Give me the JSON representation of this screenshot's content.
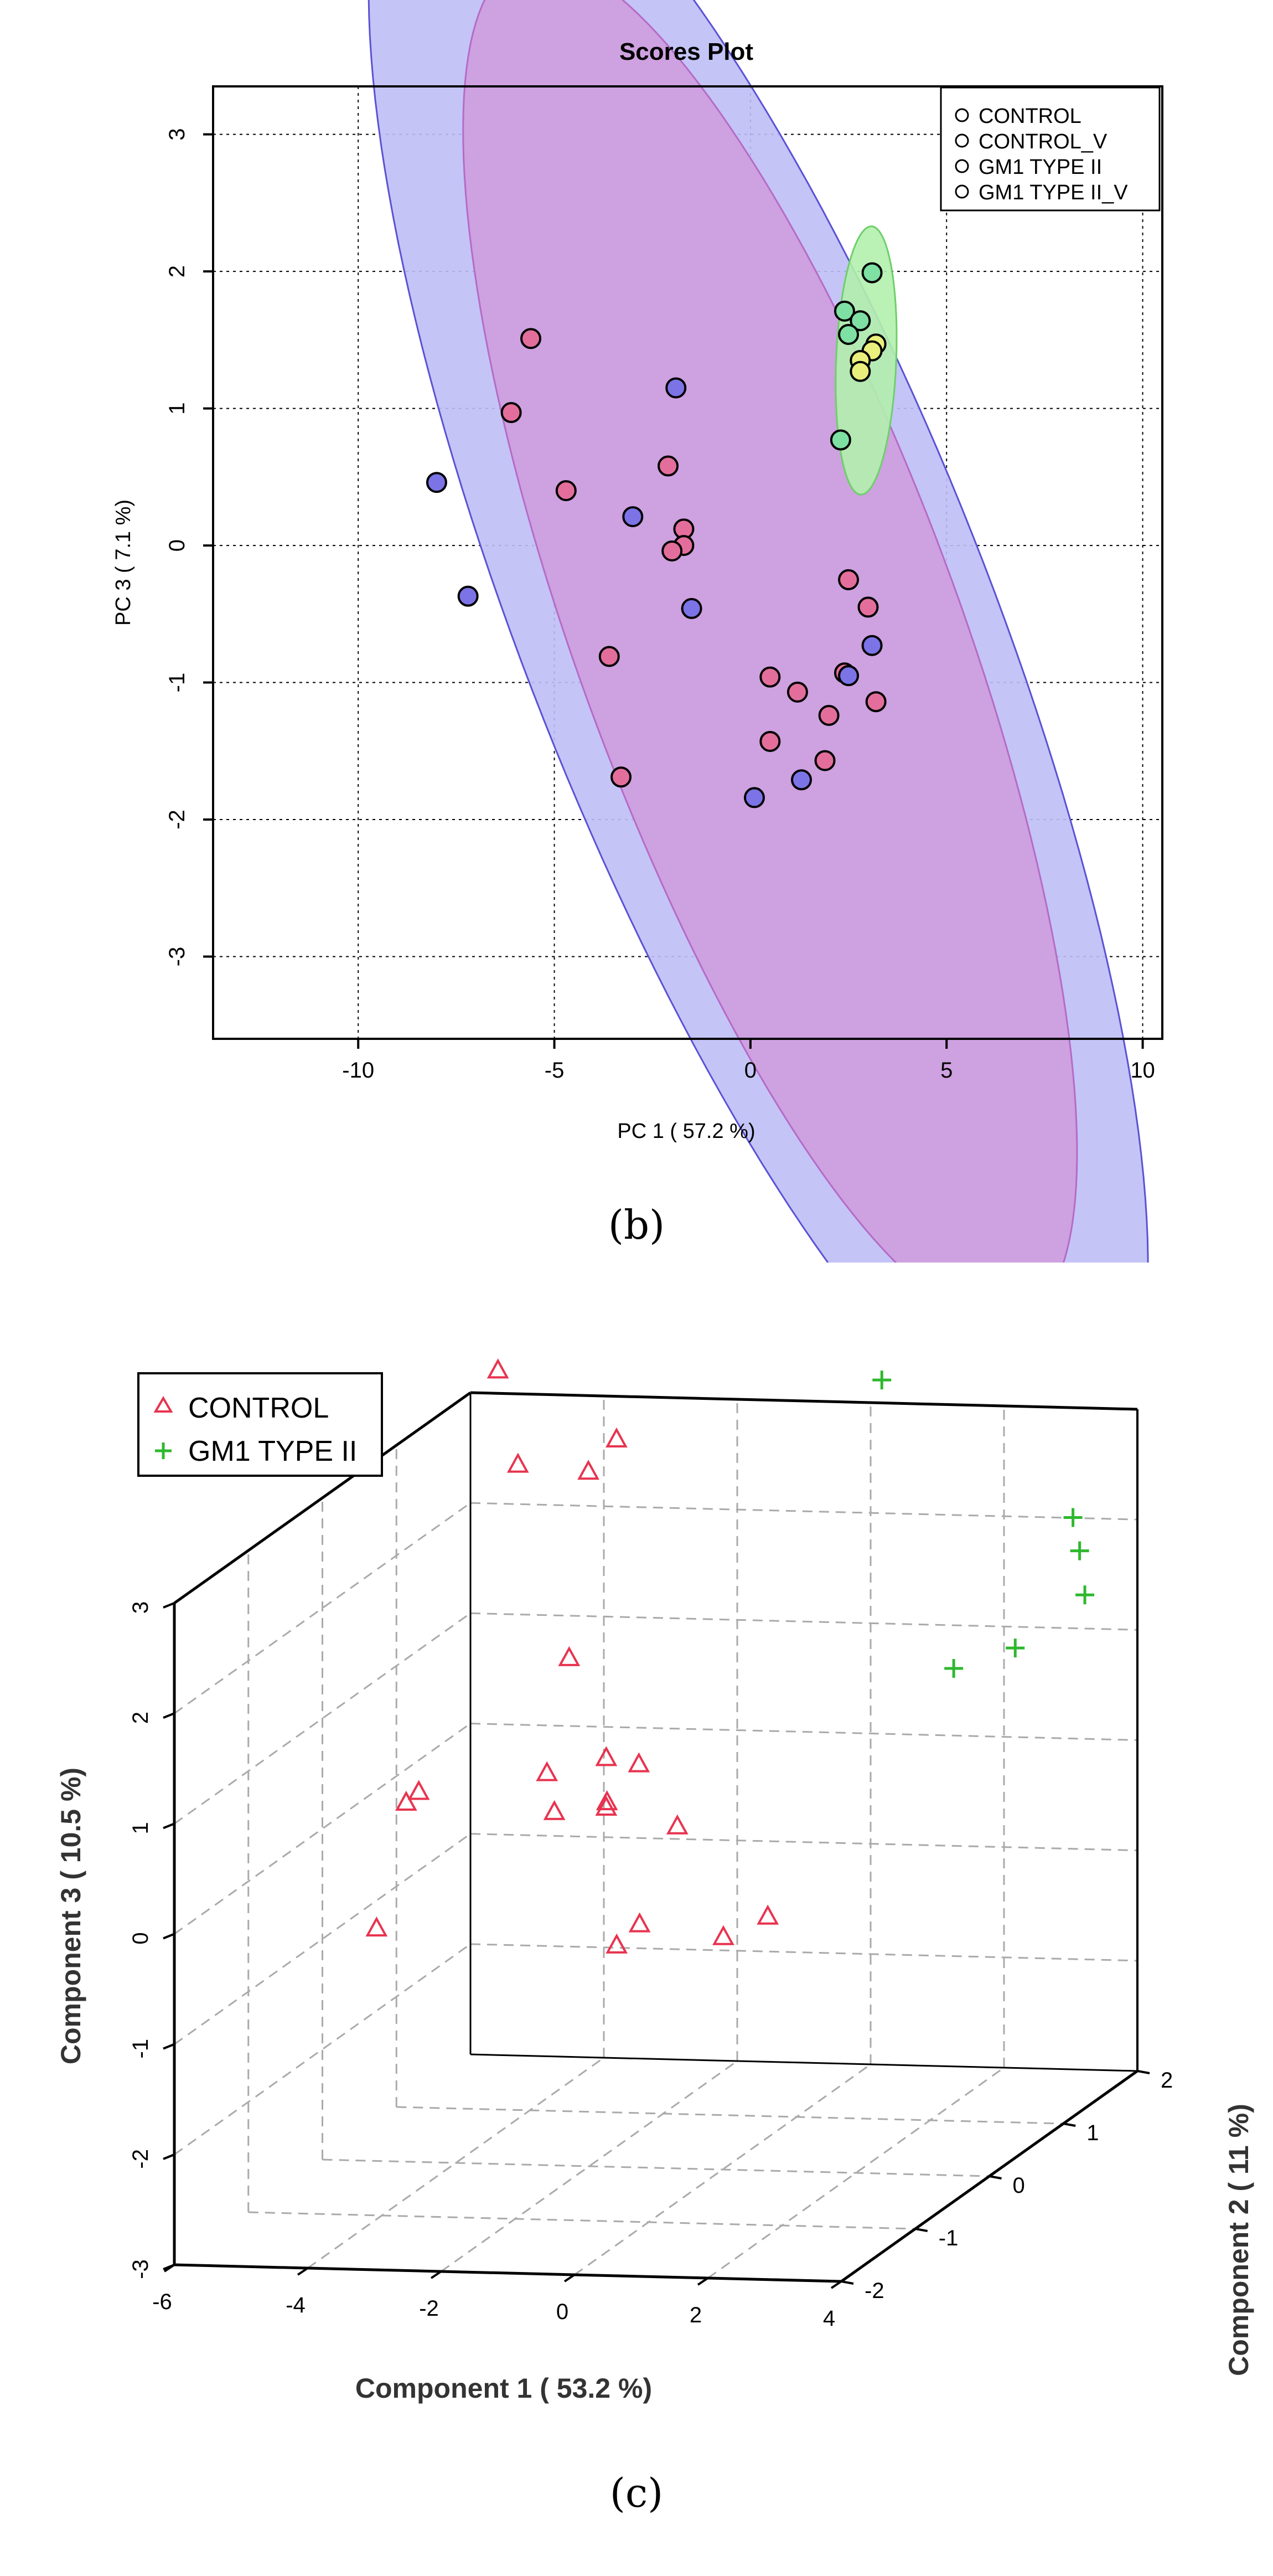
{
  "captions": {
    "b": "(b)",
    "c": "(c)"
  },
  "chart_data": [
    {
      "type": "scatter",
      "title": "Scores Plot",
      "xlabel": "PC 1 ( 57.2 %)",
      "ylabel": "PC 3 ( 7.1 %)",
      "xlim": [
        -13.7,
        10.5
      ],
      "ylim": [
        -3.6,
        3.35
      ],
      "x_ticks": [
        -10,
        -5,
        0,
        5,
        10
      ],
      "y_ticks": [
        -3,
        -2,
        -1,
        0,
        1,
        2,
        3
      ],
      "x_tick_labels": [
        "-10",
        "-5",
        "0",
        "5",
        "10"
      ],
      "y_tick_labels": [
        "-3",
        "-2",
        "-1",
        "0",
        "1",
        "2",
        "3"
      ],
      "grid": true,
      "legend_position": "top-right",
      "legend": [
        "CONTROL",
        "CONTROL_V",
        "GM1 TYPE II",
        "GM1 TYPE II_V"
      ],
      "colors": {
        "CONTROL": "#e36e9c",
        "CONTROL_V": "#7b73e6",
        "GM1 TYPE II": "#7ee0a2",
        "GM1 TYPE II_V": "#e9ef7c",
        "ellipse_control_v": "#bebef6",
        "ellipse_control": "#cf9ddd",
        "ellipse_gm1": "#b3efad"
      },
      "ellipses": [
        {
          "group": "CONTROL_V",
          "cx": 0.2,
          "cy": -0.6,
          "a": 11.1,
          "b": 3.46,
          "angle_deg": -28.0
        },
        {
          "group": "CONTROL",
          "cx": 0.5,
          "cy": -0.7,
          "a": 8.8,
          "b": 2.93,
          "angle_deg": -29.0
        },
        {
          "group": "GM1 TYPE II",
          "cx": 2.95,
          "cy": 1.35,
          "a": 1.0,
          "b": 0.75,
          "angle_deg": 72.0
        }
      ],
      "series": [
        {
          "name": "CONTROL",
          "points": [
            [
              -5.6,
              1.51
            ],
            [
              -6.1,
              0.97
            ],
            [
              -4.7,
              0.4
            ],
            [
              -2.1,
              0.58
            ],
            [
              -1.7,
              0.12
            ],
            [
              -1.7,
              0.0
            ],
            [
              -2.0,
              -0.04
            ],
            [
              -3.6,
              -0.81
            ],
            [
              -3.3,
              -1.69
            ],
            [
              0.5,
              -0.96
            ],
            [
              0.5,
              -1.43
            ],
            [
              1.2,
              -1.07
            ],
            [
              2.0,
              -1.24
            ],
            [
              1.9,
              -1.57
            ],
            [
              2.5,
              -0.25
            ],
            [
              3.0,
              -0.45
            ],
            [
              3.2,
              -1.14
            ],
            [
              2.4,
              -0.93
            ]
          ]
        },
        {
          "name": "CONTROL_V",
          "points": [
            [
              -8.0,
              0.46
            ],
            [
              -7.2,
              -0.37
            ],
            [
              -1.9,
              1.15
            ],
            [
              -3.0,
              0.21
            ],
            [
              -1.5,
              -0.46
            ],
            [
              0.1,
              -1.84
            ],
            [
              1.3,
              -1.71
            ],
            [
              2.5,
              -0.95
            ],
            [
              3.1,
              -0.73
            ]
          ]
        },
        {
          "name": "GM1 TYPE II",
          "points": [
            [
              3.1,
              1.99
            ],
            [
              2.4,
              1.71
            ],
            [
              2.8,
              1.64
            ],
            [
              2.5,
              1.54
            ],
            [
              2.3,
              0.77
            ]
          ]
        },
        {
          "name": "GM1 TYPE II_V",
          "points": [
            [
              3.2,
              1.47
            ],
            [
              3.1,
              1.42
            ],
            [
              2.8,
              1.35
            ],
            [
              2.8,
              1.27
            ]
          ]
        }
      ]
    },
    {
      "type": "scatter",
      "subtype": "3d",
      "xlabel": "Component 1 ( 53.2 %)",
      "ylabel": "Component 2 ( 11 %)",
      "zlabel": "Component 3 ( 10.5 %)",
      "xlim": [
        -6,
        4
      ],
      "ylim": [
        -2,
        2
      ],
      "zlim": [
        -3,
        3
      ],
      "x_ticks": [
        -6,
        -4,
        -2,
        0,
        2,
        4
      ],
      "y_ticks": [
        -2,
        -1,
        0,
        1,
        2
      ],
      "z_ticks": [
        -3,
        -2,
        -1,
        0,
        1,
        2,
        3
      ],
      "x_tick_labels": [
        "-6",
        "-4",
        "-2",
        "0",
        "2",
        "4"
      ],
      "y_tick_labels": [
        "-2",
        "-1",
        "0",
        "1",
        "2"
      ],
      "z_tick_labels": [
        "-3",
        "-2",
        "-1",
        "0",
        "1",
        "2",
        "3"
      ],
      "grid": true,
      "legend_position": "top-left",
      "legend": [
        {
          "name": "CONTROL",
          "marker": "△"
        },
        {
          "name": "GM1 TYPE II",
          "marker": "+"
        }
      ],
      "colors": {
        "CONTROL": "#e8334f",
        "GM1 TYPE II": "#2eb82e"
      },
      "series": [
        {
          "name": "CONTROL",
          "points": [
            [
              -4.7,
              1.2,
              3.6
            ],
            [
              -4.4,
              1.2,
              2.75
            ],
            [
              -2.9,
              0.8,
              2.9
            ],
            [
              -2.7,
              1.0,
              3.1
            ],
            [
              -2.3,
              0.0,
              1.6
            ],
            [
              -4.0,
              -0.5,
              0.6
            ],
            [
              -4.3,
              -0.4,
              0.45
            ],
            [
              -2.3,
              -0.3,
              0.7
            ],
            [
              -1.3,
              -0.4,
              0.9
            ],
            [
              -0.7,
              -0.5,
              0.9
            ],
            [
              -1.3,
              -0.4,
              0.45
            ],
            [
              -1.4,
              -0.3,
              0.45
            ],
            [
              -2.3,
              -0.2,
              0.3
            ],
            [
              -0.9,
              0.2,
              0.0
            ],
            [
              -4.3,
              -0.8,
              -0.5
            ],
            [
              -0.8,
              -0.4,
              -0.6
            ],
            [
              -0.7,
              -0.8,
              -0.6
            ],
            [
              0.9,
              -0.2,
              -0.6
            ],
            [
              0.9,
              -0.8,
              -0.5
            ]
          ]
        },
        {
          "name": "GM1 TYPE II",
          "points": [
            [
              1.5,
              0.8,
              3.8
            ],
            [
              3.7,
              1.4,
              2.3
            ],
            [
              3.8,
              1.4,
              2.0
            ],
            [
              4.1,
              1.2,
              1.7
            ],
            [
              3.5,
              0.8,
              1.4
            ],
            [
              2.8,
              0.6,
              1.3
            ]
          ]
        }
      ]
    }
  ]
}
